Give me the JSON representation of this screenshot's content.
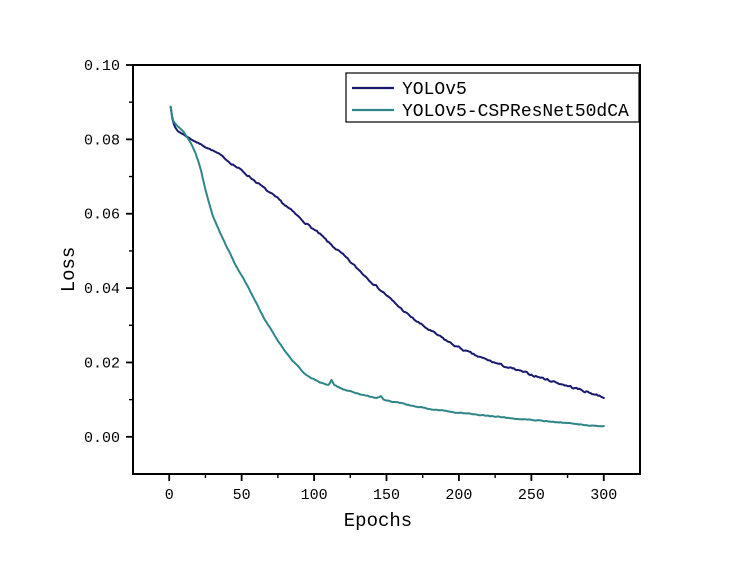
{
  "colors": {
    "background": "#ffffff",
    "axis": "#000000",
    "yolov5_line": "#191970",
    "cspresnet_line": "#2e8688"
  },
  "chart_data": {
    "type": "line",
    "title": "",
    "xlabel": "Epochs",
    "ylabel": "Loss",
    "xlim": [
      -25,
      325
    ],
    "ylim": [
      -0.01,
      0.1
    ],
    "grid": false,
    "x_ticks": {
      "values": [
        0,
        50,
        100,
        150,
        200,
        250,
        300
      ],
      "labels": [
        "0",
        "50",
        "100",
        "150",
        "200",
        "250",
        "300"
      ],
      "minor_values": [
        25,
        75,
        125,
        175,
        225,
        275
      ]
    },
    "y_ticks": {
      "values": [
        0.0,
        0.02,
        0.04,
        0.06,
        0.08,
        0.1
      ],
      "labels": [
        "0.00",
        "0.02",
        "0.04",
        "0.06",
        "0.08",
        "0.10"
      ],
      "minor_values": [
        0.01,
        0.03,
        0.05,
        0.07,
        0.09
      ]
    },
    "legend": {
      "position": "upper-right-inside",
      "border": true,
      "entries": [
        "YOLOv5",
        "YOLOv5-CSPResNet50dCA"
      ]
    },
    "series": [
      {
        "name": "YOLOv5",
        "color": "#191970",
        "jitter": 0.0005,
        "points": [
          [
            1,
            0.0888
          ],
          [
            2,
            0.086
          ],
          [
            3,
            0.0843
          ],
          [
            4,
            0.0833
          ],
          [
            5,
            0.0827
          ],
          [
            6,
            0.0822
          ],
          [
            8,
            0.0817
          ],
          [
            10,
            0.0813
          ],
          [
            12,
            0.0808
          ],
          [
            15,
            0.0801
          ],
          [
            20,
            0.079
          ],
          [
            25,
            0.078
          ],
          [
            30,
            0.077
          ],
          [
            35,
            0.0759
          ],
          [
            40,
            0.0744
          ],
          [
            45,
            0.073
          ],
          [
            50,
            0.0716
          ],
          [
            55,
            0.0701
          ],
          [
            60,
            0.0686
          ],
          [
            65,
            0.067
          ],
          [
            70,
            0.0654
          ],
          [
            75,
            0.0639
          ],
          [
            80,
            0.0623
          ],
          [
            85,
            0.0606
          ],
          [
            90,
            0.0589
          ],
          [
            95,
            0.0573
          ],
          [
            100,
            0.0557
          ],
          [
            105,
            0.0541
          ],
          [
            110,
            0.0522
          ],
          [
            115,
            0.0506
          ],
          [
            120,
            0.0489
          ],
          [
            125,
            0.047
          ],
          [
            130,
            0.0452
          ],
          [
            135,
            0.0434
          ],
          [
            140,
            0.0416
          ],
          [
            145,
            0.0398
          ],
          [
            150,
            0.0381
          ],
          [
            155,
            0.0362
          ],
          [
            160,
            0.0345
          ],
          [
            165,
            0.0328
          ],
          [
            170,
            0.0313
          ],
          [
            175,
            0.0299
          ],
          [
            180,
            0.0286
          ],
          [
            185,
            0.0274
          ],
          [
            190,
            0.0262
          ],
          [
            195,
            0.025
          ],
          [
            200,
            0.024
          ],
          [
            205,
            0.023
          ],
          [
            210,
            0.0221
          ],
          [
            215,
            0.0213
          ],
          [
            220,
            0.0206
          ],
          [
            225,
            0.0199
          ],
          [
            230,
            0.0192
          ],
          [
            235,
            0.0185
          ],
          [
            240,
            0.0179
          ],
          [
            245,
            0.0173
          ],
          [
            250,
            0.0167
          ],
          [
            255,
            0.0161
          ],
          [
            260,
            0.0155
          ],
          [
            265,
            0.0149
          ],
          [
            270,
            0.0143
          ],
          [
            275,
            0.0137
          ],
          [
            280,
            0.0131
          ],
          [
            285,
            0.0125
          ],
          [
            290,
            0.0119
          ],
          [
            295,
            0.0113
          ],
          [
            300,
            0.0107
          ]
        ]
      },
      {
        "name": "YOLOv5-CSPResNet50dCA",
        "color": "#2e8688",
        "jitter": 0.00022,
        "points": [
          [
            1,
            0.0888
          ],
          [
            2,
            0.0862
          ],
          [
            3,
            0.0848
          ],
          [
            5,
            0.0838
          ],
          [
            8,
            0.0828
          ],
          [
            10,
            0.082
          ],
          [
            12,
            0.0808
          ],
          [
            15,
            0.079
          ],
          [
            18,
            0.0765
          ],
          [
            20,
            0.0742
          ],
          [
            22,
            0.0715
          ],
          [
            25,
            0.0665
          ],
          [
            28,
            0.0622
          ],
          [
            30,
            0.0595
          ],
          [
            33,
            0.0568
          ],
          [
            35,
            0.055
          ],
          [
            38,
            0.0525
          ],
          [
            40,
            0.0508
          ],
          [
            43,
            0.0485
          ],
          [
            45,
            0.0468
          ],
          [
            48,
            0.0448
          ],
          [
            50,
            0.0434
          ],
          [
            53,
            0.0414
          ],
          [
            55,
            0.0398
          ],
          [
            58,
            0.0376
          ],
          [
            60,
            0.0361
          ],
          [
            63,
            0.0338
          ],
          [
            65,
            0.0323
          ],
          [
            68,
            0.0302
          ],
          [
            70,
            0.029
          ],
          [
            73,
            0.027
          ],
          [
            75,
            0.0258
          ],
          [
            78,
            0.0242
          ],
          [
            80,
            0.023
          ],
          [
            83,
            0.0214
          ],
          [
            85,
            0.0205
          ],
          [
            88,
            0.0193
          ],
          [
            90,
            0.0185
          ],
          [
            93,
            0.0172
          ],
          [
            95,
            0.0166
          ],
          [
            98,
            0.0159
          ],
          [
            100,
            0.0154
          ],
          [
            105,
            0.0146
          ],
          [
            108,
            0.0142
          ],
          [
            110,
            0.014
          ],
          [
            112,
            0.0153
          ],
          [
            114,
            0.0139
          ],
          [
            118,
            0.0131
          ],
          [
            120,
            0.0128
          ],
          [
            125,
            0.0122
          ],
          [
            130,
            0.0117
          ],
          [
            135,
            0.0112
          ],
          [
            140,
            0.0107
          ],
          [
            143,
            0.0103
          ],
          [
            146,
            0.0109
          ],
          [
            148,
            0.01
          ],
          [
            150,
            0.0098
          ],
          [
            155,
            0.0094
          ],
          [
            160,
            0.009
          ],
          [
            165,
            0.0086
          ],
          [
            170,
            0.0082
          ],
          [
            175,
            0.0078
          ],
          [
            180,
            0.0075
          ],
          [
            185,
            0.0072
          ],
          [
            190,
            0.007
          ],
          [
            195,
            0.0067
          ],
          [
            200,
            0.0065
          ],
          [
            205,
            0.0063
          ],
          [
            210,
            0.0061
          ],
          [
            215,
            0.0059
          ],
          [
            220,
            0.0057
          ],
          [
            225,
            0.0055
          ],
          [
            230,
            0.0053
          ],
          [
            235,
            0.0051
          ],
          [
            240,
            0.0049
          ],
          [
            245,
            0.0047
          ],
          [
            250,
            0.0046
          ],
          [
            255,
            0.0044
          ],
          [
            260,
            0.0042
          ],
          [
            265,
            0.004
          ],
          [
            270,
            0.0039
          ],
          [
            275,
            0.0037
          ],
          [
            280,
            0.0035
          ],
          [
            285,
            0.0033
          ],
          [
            290,
            0.0031
          ],
          [
            295,
            0.0029
          ],
          [
            300,
            0.0028
          ]
        ]
      }
    ]
  }
}
